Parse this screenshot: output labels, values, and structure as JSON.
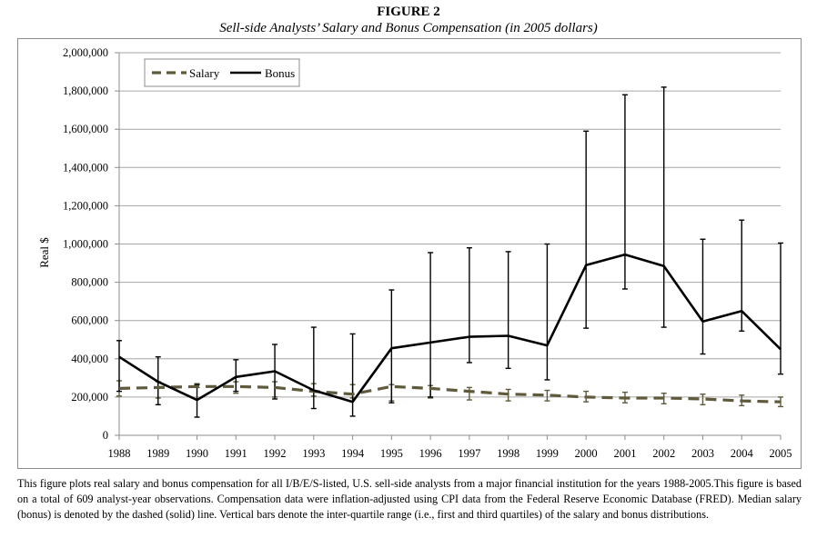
{
  "figure": {
    "title": "FIGURE 2",
    "subtitle": "Sell-side Analysts’ Salary and Bonus Compensation (in 2005 dollars)",
    "caption": "This figure plots real salary and bonus compensation for all I/B/E/S-listed, U.S. sell-side analysts from a major financial institution for the years 1988-2005.This figure is based on a total of 609 analyst-year observations. Compensation data were inflation-adjusted using CPI data from the Federal Reserve Economic Database (FRED). Median salary (bonus) is denoted by the dashed (solid) line. Vertical bars denote the inter-quartile range (i.e., first and third quartiles) of the salary and bonus distributions."
  },
  "colors": {
    "salary": "#5f5a3c",
    "bonus": "#000000",
    "grid": "#a6a6a6",
    "axis": "#8c8c8c"
  },
  "chart_data": {
    "type": "line",
    "ylabel": "Real $",
    "xlabel": "",
    "ylim": [
      0,
      2000000
    ],
    "yticks": [
      0,
      200000,
      400000,
      600000,
      800000,
      1000000,
      1200000,
      1400000,
      1600000,
      1800000,
      2000000
    ],
    "ytick_labels": [
      "0",
      "200,000",
      "400,000",
      "600,000",
      "800,000",
      "1,000,000",
      "1,200,000",
      "1,400,000",
      "1,600,000",
      "1,800,000",
      "2,000,000"
    ],
    "grid": true,
    "legend_position": "top-left",
    "x": [
      "1988",
      "1989",
      "1990",
      "1991",
      "1992",
      "1993",
      "1994",
      "1995",
      "1996",
      "1997",
      "1998",
      "1999",
      "2000",
      "2001",
      "2002",
      "2003",
      "2004",
      "2005"
    ],
    "series": [
      {
        "name": "Salary",
        "style": "dashed",
        "median": [
          245000,
          250000,
          255000,
          255000,
          250000,
          230000,
          215000,
          255000,
          245000,
          230000,
          215000,
          210000,
          200000,
          195000,
          195000,
          190000,
          180000,
          175000
        ],
        "q1": [
          205000,
          195000,
          250000,
          220000,
          200000,
          205000,
          195000,
          180000,
          195000,
          185000,
          180000,
          180000,
          175000,
          170000,
          165000,
          160000,
          155000,
          150000
        ],
        "q3": [
          285000,
          280000,
          270000,
          280000,
          280000,
          270000,
          265000,
          265000,
          260000,
          250000,
          240000,
          235000,
          230000,
          225000,
          220000,
          215000,
          210000,
          200000
        ]
      },
      {
        "name": "Bonus",
        "style": "solid",
        "median": [
          410000,
          280000,
          185000,
          305000,
          335000,
          235000,
          175000,
          455000,
          485000,
          515000,
          520000,
          470000,
          890000,
          945000,
          885000,
          595000,
          650000,
          450000
        ],
        "q1": [
          230000,
          160000,
          95000,
          230000,
          190000,
          140000,
          100000,
          170000,
          200000,
          380000,
          350000,
          290000,
          560000,
          765000,
          565000,
          425000,
          545000,
          320000
        ],
        "q3": [
          495000,
          410000,
          265000,
          395000,
          475000,
          565000,
          530000,
          760000,
          955000,
          980000,
          960000,
          1000000,
          1590000,
          1780000,
          1820000,
          1025000,
          1125000,
          1005000
        ]
      }
    ]
  }
}
